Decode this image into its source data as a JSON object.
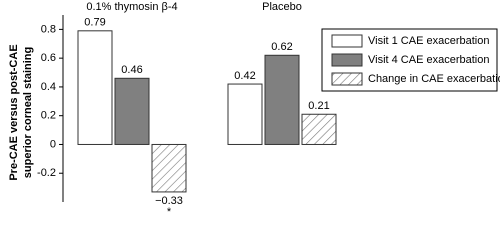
{
  "chart_data": {
    "type": "bar",
    "ylabel": [
      "Pre-CAE versus post-CAE",
      "superior corneal staining"
    ],
    "categories": [
      "0.1% thymosin β-4",
      "Placebo"
    ],
    "series": [
      {
        "name": "Visit 1 CAE exacerbation",
        "color": "#ffffff",
        "values": [
          0.79,
          0.42
        ]
      },
      {
        "name": "Visit 4 CAE exacerbation",
        "color": "#808080",
        "values": [
          0.46,
          0.62
        ]
      },
      {
        "name": "Change in CAE exacerbation",
        "color": "#ffffff",
        "hatch": true,
        "values": [
          -0.33,
          0.21
        ],
        "value_labels": [
          "−0.33",
          "0.21"
        ],
        "markers": [
          "*",
          null
        ]
      }
    ],
    "ylim": [
      -0.4,
      0.9
    ],
    "yticks": [
      -0.2,
      0,
      0.2,
      0.4,
      0.6,
      0.8
    ],
    "legend": "top-right"
  }
}
